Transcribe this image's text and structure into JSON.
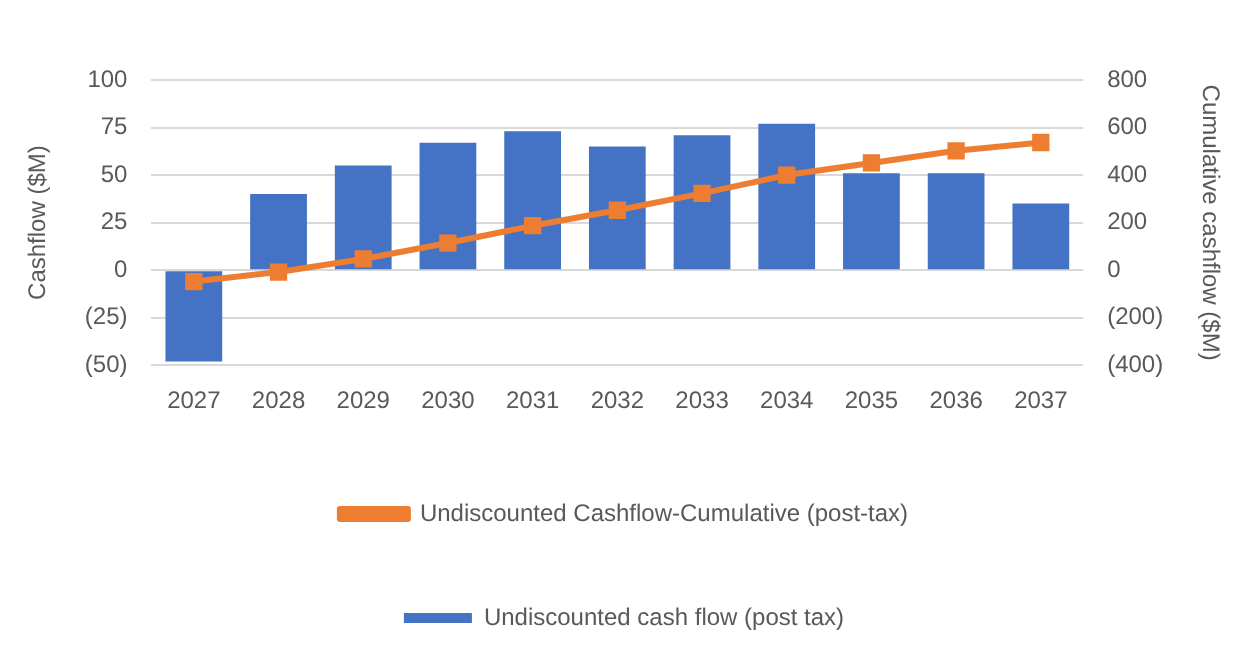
{
  "chart_data": {
    "type": "bar",
    "ylabel": "Cashflow ($M)",
    "y2label": "Cumulative cashflow ($M)",
    "categories": [
      "2027",
      "2028",
      "2029",
      "2030",
      "2031",
      "2032",
      "2033",
      "2034",
      "2035",
      "2036",
      "2037"
    ],
    "series": [
      {
        "name": "Undiscounted cash flow (post tax)",
        "color": "#4472c4",
        "values": [
          -48,
          40,
          55,
          67,
          73,
          65,
          71,
          77,
          51,
          51,
          35
        ]
      },
      {
        "name": "Undiscounted Cashflow-Cumulative (post-tax)",
        "type": "line",
        "axis": "y2",
        "color": "#ed7d31",
        "values": [
          -48,
          -8,
          47,
          114,
          187,
          252,
          323,
          400,
          451,
          502,
          537
        ]
      }
    ],
    "ylim": [
      -50,
      100
    ],
    "yticks": [
      {
        "value": -50,
        "label": "(50)"
      },
      {
        "value": -25,
        "label": "(25)"
      },
      0,
      25,
      50,
      75,
      100
    ],
    "y2lim": [
      -400,
      800
    ],
    "y2ticks": [
      {
        "value": -400,
        "label": "(400)"
      },
      {
        "value": -200,
        "label": "(200)"
      },
      0,
      200,
      400,
      600,
      800
    ],
    "grid": "y",
    "legend": "bottom",
    "marker": "square",
    "line_style": "solid"
  }
}
